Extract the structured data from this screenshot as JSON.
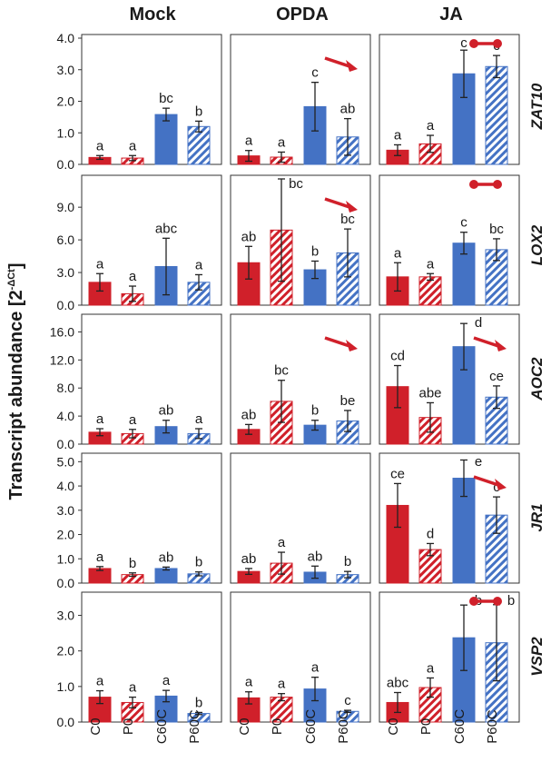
{
  "figure": {
    "y_axis_label_main": "Transcript abundance [2",
    "y_axis_label_sup": "-ΔCt",
    "y_axis_label_close": "]",
    "columns": [
      "Mock",
      "OPDA",
      "JA"
    ],
    "categories": [
      "C0",
      "P0",
      "C60C",
      "P60C"
    ],
    "rows": [
      {
        "gene": "ZAT10",
        "ticks": [
          "0.0",
          "1.0",
          "2.0",
          "3.0",
          "4.0"
        ]
      },
      {
        "gene": "LOX2",
        "ticks": [
          "0.0",
          "3.0",
          "6.0",
          "9.0"
        ]
      },
      {
        "gene": "AOC2",
        "ticks": [
          "0.0",
          "4.0",
          "8.0",
          "12.0",
          "16.0"
        ]
      },
      {
        "gene": "JR1",
        "ticks": [
          "0.0",
          "1.0",
          "2.0",
          "3.0",
          "4.0",
          "5.0"
        ]
      },
      {
        "gene": "VSP2",
        "ticks": [
          "0.0",
          "1.0",
          "2.0",
          "3.0"
        ]
      }
    ]
  },
  "colors": {
    "control_red": "#d0202a",
    "primed_red": "#d0202a",
    "control_blue": "#4472c4",
    "primed_blue": "#4472c4",
    "arrow": "#d0202a"
  },
  "chart_data": {
    "type": "bar",
    "categories": [
      "C0",
      "P0",
      "C60C",
      "P60C"
    ],
    "fill_pattern": [
      "solid",
      "hatched",
      "solid",
      "hatched"
    ],
    "ylabel": "Transcript abundance [2-ΔCt]",
    "panels": [
      {
        "gene": "ZAT10",
        "treatment": "Mock",
        "ylim": [
          0,
          4
        ],
        "values": [
          0.22,
          0.2,
          1.58,
          1.2
        ],
        "errors": [
          0.06,
          0.08,
          0.2,
          0.17
        ],
        "letters": [
          "a",
          "a",
          "bc",
          "b"
        ],
        "marker": "none"
      },
      {
        "gene": "ZAT10",
        "treatment": "OPDA",
        "ylim": [
          0,
          4
        ],
        "values": [
          0.27,
          0.23,
          1.83,
          0.87
        ],
        "errors": [
          0.17,
          0.16,
          0.77,
          0.58
        ],
        "letters": [
          "a",
          "a",
          "c",
          "ab"
        ],
        "marker": "arrow"
      },
      {
        "gene": "ZAT10",
        "treatment": "JA",
        "ylim": [
          0,
          4
        ],
        "values": [
          0.45,
          0.65,
          2.87,
          3.1
        ],
        "errors": [
          0.17,
          0.27,
          0.75,
          0.35
        ],
        "letters": [
          "a",
          "a",
          "c",
          "c"
        ],
        "marker": "dumbbell"
      },
      {
        "gene": "LOX2",
        "treatment": "Mock",
        "ylim": [
          0,
          11.6
        ],
        "values": [
          2.1,
          1.05,
          3.55,
          2.1
        ],
        "errors": [
          0.8,
          0.7,
          2.6,
          0.7
        ],
        "letters": [
          "a",
          "a",
          "abc",
          "a"
        ],
        "marker": "none"
      },
      {
        "gene": "LOX2",
        "treatment": "OPDA",
        "ylim": [
          0,
          11.6
        ],
        "values": [
          3.9,
          6.9,
          3.25,
          4.8
        ],
        "errors": [
          1.5,
          4.7,
          0.8,
          2.2
        ],
        "letters": [
          "ab",
          "bc",
          "b",
          "bc"
        ],
        "marker": "arrow"
      },
      {
        "gene": "LOX2",
        "treatment": "JA",
        "ylim": [
          0,
          11.6
        ],
        "values": [
          2.6,
          2.6,
          5.7,
          5.1
        ],
        "errors": [
          1.3,
          0.3,
          1.0,
          1.0
        ],
        "letters": [
          "a",
          "a",
          "c",
          "bc"
        ],
        "marker": "dumbbell"
      },
      {
        "gene": "AOC2",
        "treatment": "Mock",
        "ylim": [
          0,
          18
        ],
        "values": [
          1.7,
          1.5,
          2.5,
          1.5
        ],
        "errors": [
          0.5,
          0.6,
          0.9,
          0.7
        ],
        "letters": [
          "a",
          "a",
          "ab",
          "a"
        ],
        "marker": "none"
      },
      {
        "gene": "AOC2",
        "treatment": "OPDA",
        "ylim": [
          0,
          18
        ],
        "values": [
          2.1,
          6.1,
          2.7,
          3.3
        ],
        "errors": [
          0.7,
          3.0,
          0.7,
          1.5
        ],
        "letters": [
          "ab",
          "bc",
          "b",
          "be"
        ],
        "marker": "arrow"
      },
      {
        "gene": "AOC2",
        "treatment": "JA",
        "ylim": [
          0,
          18
        ],
        "values": [
          8.2,
          3.8,
          13.9,
          6.7
        ],
        "errors": [
          3.0,
          2.1,
          3.3,
          1.6
        ],
        "letters": [
          "cd",
          "abe",
          "d",
          "ce"
        ],
        "marker": "arrow"
      },
      {
        "gene": "JR1",
        "treatment": "Mock",
        "ylim": [
          0,
          5.2
        ],
        "values": [
          0.6,
          0.35,
          0.6,
          0.38
        ],
        "errors": [
          0.08,
          0.07,
          0.06,
          0.08
        ],
        "letters": [
          "a",
          "b",
          "ab",
          "b"
        ],
        "marker": "none"
      },
      {
        "gene": "JR1",
        "treatment": "OPDA",
        "ylim": [
          0,
          5.2
        ],
        "values": [
          0.48,
          0.82,
          0.45,
          0.35
        ],
        "errors": [
          0.12,
          0.45,
          0.25,
          0.13
        ],
        "letters": [
          "ab",
          "a",
          "ab",
          "b"
        ],
        "marker": "none"
      },
      {
        "gene": "JR1",
        "treatment": "JA",
        "ylim": [
          0,
          5.2
        ],
        "values": [
          3.2,
          1.38,
          4.32,
          2.8
        ],
        "errors": [
          0.9,
          0.25,
          0.75,
          0.75
        ],
        "letters": [
          "ce",
          "d",
          "e",
          "c"
        ],
        "marker": "arrow"
      },
      {
        "gene": "VSP2",
        "treatment": "Mock",
        "ylim": [
          0,
          3.55
        ],
        "values": [
          0.7,
          0.55,
          0.73,
          0.24
        ],
        "errors": [
          0.18,
          0.15,
          0.16,
          0.03
        ],
        "letters": [
          "a",
          "a",
          "a",
          "b"
        ],
        "marker": "none"
      },
      {
        "gene": "VSP2",
        "treatment": "OPDA",
        "ylim": [
          0,
          3.55
        ],
        "values": [
          0.68,
          0.7,
          0.93,
          0.3
        ],
        "errors": [
          0.17,
          0.1,
          0.33,
          0.03
        ],
        "letters": [
          "a",
          "a",
          "a",
          "c"
        ],
        "marker": "none"
      },
      {
        "gene": "VSP2",
        "treatment": "JA",
        "ylim": [
          0,
          3.55
        ],
        "values": [
          0.55,
          0.97,
          2.37,
          2.23
        ],
        "errors": [
          0.28,
          0.27,
          0.92,
          1.07
        ],
        "letters": [
          "abc",
          "a",
          "b",
          "b"
        ],
        "marker": "dumbbell"
      }
    ]
  }
}
